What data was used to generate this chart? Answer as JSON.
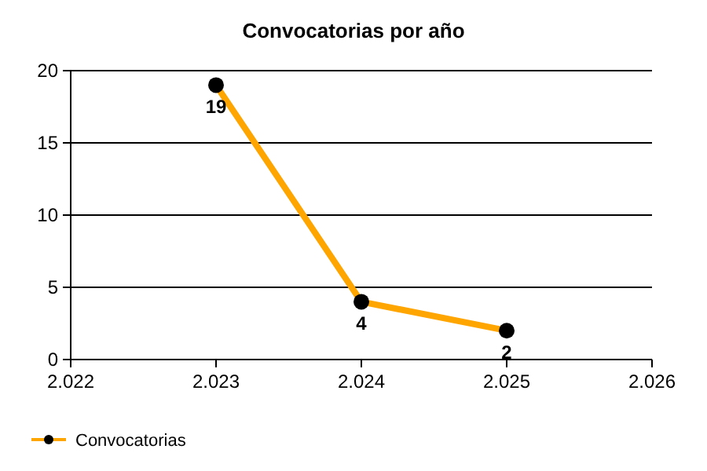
{
  "chart_data": {
    "type": "line",
    "title": "Convocatorias por año",
    "x": [
      2023,
      2024,
      2025
    ],
    "series": [
      {
        "name": "Convocatorias",
        "color": "#ffa500",
        "values": [
          19,
          4,
          2
        ]
      }
    ],
    "xlim": [
      2022,
      2026
    ],
    "xticks": [
      {
        "value": 2022,
        "label": "2.022"
      },
      {
        "value": 2023,
        "label": "2.023"
      },
      {
        "value": 2024,
        "label": "2.024"
      },
      {
        "value": 2025,
        "label": "2.025"
      },
      {
        "value": 2026,
        "label": "2.026"
      }
    ],
    "ylim": [
      0,
      20
    ],
    "yticks": [
      0,
      5,
      10,
      15,
      20
    ],
    "grid": "y",
    "legend": "bottom left",
    "marker": "circle",
    "line_style": "solid",
    "data_labels": true
  }
}
